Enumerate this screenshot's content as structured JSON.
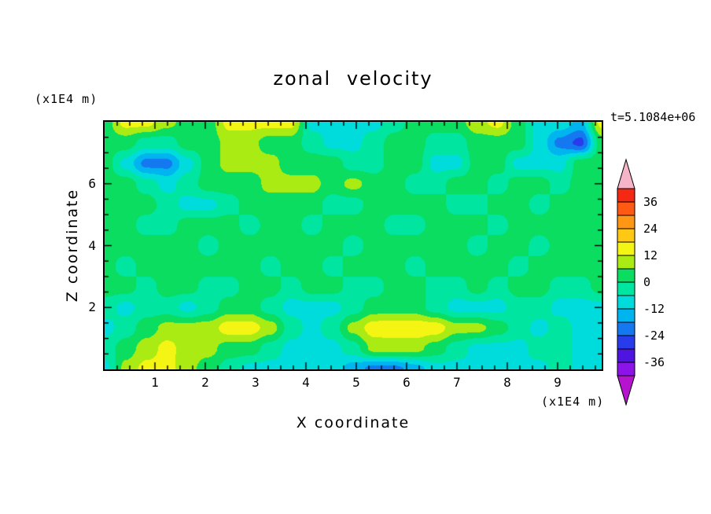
{
  "chart_data": {
    "type": "heatmap",
    "title": "zonal velocity",
    "time": "t=5.1084e+06",
    "xlabel": "X coordinate",
    "ylabel": "Z coordinate",
    "x_units": "(x1E4 m)",
    "y_units": "(x1E4 m)",
    "xlim": [
      0,
      9.875
    ],
    "ylim": [
      0,
      8
    ],
    "x_ticks": [
      1,
      2,
      3,
      4,
      5,
      6,
      7,
      8,
      9
    ],
    "y_ticks": [
      2,
      4,
      6
    ],
    "x_minor_step": 0.25,
    "y_minor_step": 0.5,
    "contour_interval": 6,
    "levels_range": [
      -42,
      42
    ],
    "colorbar_ticks": [
      36,
      24,
      12,
      0,
      -12,
      -24,
      -36
    ],
    "level_colors": [
      "#8c14e6",
      "#5014e1",
      "#283ceb",
      "#1478f0",
      "#00b4f0",
      "#00dcdc",
      "#00e6a0",
      "#0add5f",
      "#aaeb14",
      "#f5f514",
      "#ffc814",
      "#ff9614",
      "#ff5a14",
      "#f52814"
    ],
    "over_color": "#f5b4c8",
    "under_color": "#b414cd",
    "grid": {
      "nx": 25,
      "ny": 13,
      "order": "rows listed from z=8 (top) down to z=0 (bottom), columns from x=0 to x=9.875",
      "values": [
        [
          3,
          14,
          14,
          8,
          3,
          3,
          14,
          14,
          14,
          14,
          -8,
          -8,
          -8,
          -8,
          -3,
          3,
          3,
          3,
          10,
          14,
          3,
          -8,
          -8,
          -14,
          14
        ],
        [
          3,
          3,
          -3,
          -3,
          3,
          3,
          8,
          8,
          3,
          3,
          -3,
          -8,
          -8,
          -3,
          3,
          3,
          -3,
          -3,
          3,
          3,
          3,
          -8,
          -20,
          -26,
          3
        ],
        [
          3,
          -8,
          -20,
          -20,
          -8,
          3,
          8,
          8,
          8,
          3,
          3,
          3,
          -3,
          -3,
          3,
          3,
          -8,
          -8,
          3,
          3,
          -8,
          -8,
          -8,
          3,
          3
        ],
        [
          3,
          3,
          -3,
          -8,
          -3,
          3,
          3,
          3,
          8,
          8,
          8,
          3,
          8,
          3,
          3,
          -3,
          -3,
          3,
          3,
          -3,
          3,
          3,
          -3,
          3,
          3
        ],
        [
          3,
          3,
          3,
          -3,
          -8,
          -8,
          -3,
          3,
          3,
          3,
          3,
          -3,
          -3,
          3,
          3,
          3,
          3,
          -3,
          -3,
          3,
          3,
          -3,
          3,
          3,
          3
        ],
        [
          3,
          3,
          -3,
          -3,
          3,
          3,
          3,
          -3,
          3,
          3,
          -3,
          3,
          3,
          3,
          -3,
          -3,
          3,
          3,
          3,
          -3,
          3,
          3,
          3,
          3,
          3
        ],
        [
          3,
          3,
          3,
          3,
          3,
          -3,
          3,
          3,
          3,
          3,
          3,
          3,
          -3,
          3,
          3,
          3,
          3,
          3,
          -3,
          3,
          3,
          -3,
          3,
          3,
          3
        ],
        [
          3,
          -3,
          3,
          3,
          3,
          3,
          3,
          3,
          -3,
          3,
          3,
          -3,
          3,
          3,
          3,
          -3,
          3,
          3,
          3,
          3,
          -3,
          3,
          3,
          3,
          3
        ],
        [
          3,
          3,
          -3,
          3,
          3,
          -3,
          -3,
          3,
          3,
          -3,
          3,
          3,
          -3,
          -3,
          3,
          3,
          -3,
          -3,
          3,
          -3,
          3,
          3,
          -3,
          -3,
          3
        ],
        [
          -3,
          -8,
          -3,
          -3,
          -8,
          -3,
          3,
          3,
          -3,
          -8,
          -8,
          -8,
          -3,
          3,
          3,
          3,
          -3,
          -8,
          -8,
          -8,
          -3,
          -3,
          -8,
          -8,
          -8
        ],
        [
          -8,
          -3,
          3,
          8,
          8,
          9,
          15,
          15,
          9,
          -3,
          -8,
          -3,
          8,
          15,
          16,
          16,
          15,
          8,
          8,
          3,
          -3,
          -8,
          -3,
          -8,
          -8
        ],
        [
          -3,
          3,
          9,
          14,
          9,
          8,
          3,
          3,
          -3,
          -8,
          -8,
          -8,
          -3,
          8,
          8,
          8,
          3,
          -3,
          -8,
          -8,
          -8,
          -3,
          -3,
          -8,
          -8
        ],
        [
          -8,
          8,
          14,
          14,
          8,
          3,
          -3,
          -8,
          -8,
          -8,
          -8,
          -8,
          -15,
          -20,
          -20,
          -15,
          -8,
          -8,
          -8,
          -8,
          -8,
          -8,
          -3,
          -8,
          -8
        ]
      ]
    }
  }
}
